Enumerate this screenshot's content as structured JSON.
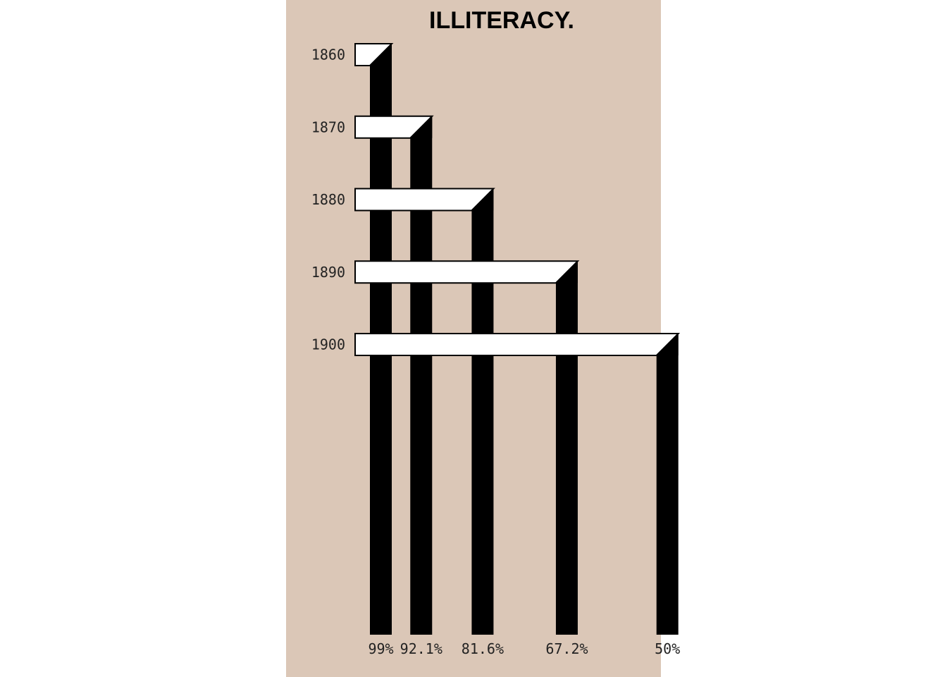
{
  "chart_data": {
    "type": "bar",
    "title": "ILLITERACY.",
    "categories": [
      "1860",
      "1870",
      "1880",
      "1890",
      "1900"
    ],
    "values": [
      99,
      92.1,
      81.6,
      67.2,
      50
    ],
    "value_labels": [
      "99%",
      "92.1%",
      "81.6%",
      "67.2%",
      "50%"
    ],
    "xlabel": "",
    "ylabel": "",
    "grid": false,
    "legend": "none"
  },
  "colors": {
    "panel_background": "#dbc7b7",
    "bar_face": "#ffffff",
    "bar_shadow": "#000000",
    "text": "#222222"
  }
}
